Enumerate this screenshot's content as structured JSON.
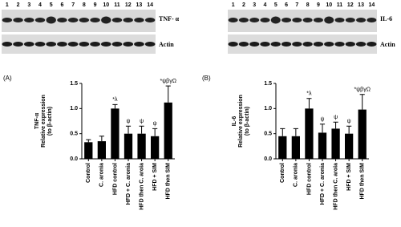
{
  "blots": [
    {
      "lanes": [
        "1",
        "2",
        "3",
        "4",
        "5",
        "6",
        "7",
        "8",
        "9",
        "10",
        "11",
        "12",
        "13",
        "14"
      ],
      "target": "TNF- α",
      "control": "Actin"
    },
    {
      "lanes": [
        "1",
        "2",
        "3",
        "4",
        "5",
        "6",
        "7",
        "8",
        "9",
        "10",
        "11",
        "12",
        "13",
        "14"
      ],
      "target": "IL-6",
      "control": "Actin"
    }
  ],
  "chart_data": [
    {
      "type": "bar",
      "panel": "(A)",
      "ylabel": [
        "TNF-α",
        "Relative expression",
        "(to β-actin)"
      ],
      "categories": [
        "Control",
        "C. aronia",
        "HFD control",
        "HFD + C. aronia",
        "HFD then C. aroia",
        "HFD + SIM",
        "HFD then SIM"
      ],
      "values": [
        0.33,
        0.35,
        1.0,
        0.5,
        0.5,
        0.45,
        1.12
      ],
      "errors": [
        0.05,
        0.1,
        0.08,
        0.15,
        0.15,
        0.15,
        0.33
      ],
      "annotations": [
        null,
        null,
        "*λ",
        "ψ",
        "ψ",
        "ψ",
        "*ψβγΩ"
      ],
      "color": "#000000",
      "ylim": [
        0,
        1.5
      ],
      "yticks": [
        {
          "value": 0,
          "label": "0.0"
        },
        {
          "value": 0.5,
          "label": "0.5"
        },
        {
          "value": 1,
          "label": "1.0"
        },
        {
          "value": 1.5,
          "label": "1.5"
        }
      ]
    },
    {
      "type": "bar",
      "panel": "(B)",
      "ylabel": [
        "IL-6",
        "Relative expression",
        "(to β-actin)"
      ],
      "categories": [
        "Control",
        "C. aronia",
        "HFD control",
        "HFD + C. aronia",
        "HFD then C. aroia",
        "HFD + SIM",
        "HFD then SIM"
      ],
      "values": [
        0.45,
        0.45,
        1.0,
        0.52,
        0.6,
        0.5,
        0.98
      ],
      "errors": [
        0.15,
        0.15,
        0.2,
        0.17,
        0.13,
        0.15,
        0.3
      ],
      "annotations": [
        null,
        null,
        "*λ",
        "ψ",
        "ψ",
        "ψ",
        "*ψβγΩ"
      ],
      "color": "#000000",
      "ylim": [
        0,
        1.5
      ],
      "yticks": [
        {
          "value": 0,
          "label": "0.0"
        },
        {
          "value": 0.5,
          "label": "0.5"
        },
        {
          "value": 1,
          "label": "1.0"
        },
        {
          "value": 1.5,
          "label": "1.5"
        }
      ]
    }
  ]
}
